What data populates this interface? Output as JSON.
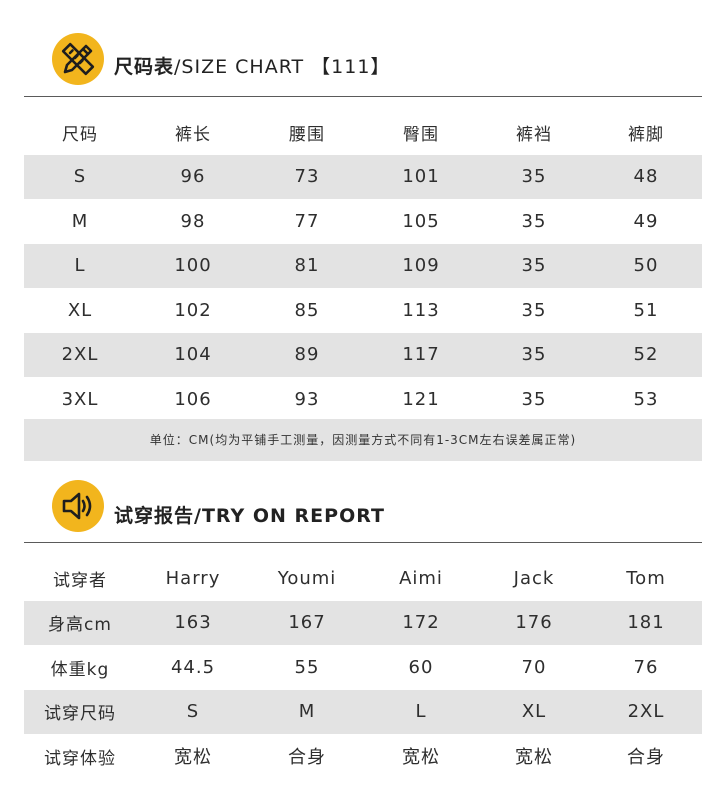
{
  "size_chart": {
    "title_cn": "尺码表",
    "title_en": "/SIZE CHART 【111】",
    "headers": [
      "尺码",
      "裤长",
      "腰围",
      "臀围",
      "裤裆",
      "裤脚"
    ],
    "rows": [
      [
        "S",
        "96",
        "73",
        "101",
        "35",
        "48"
      ],
      [
        "M",
        "98",
        "77",
        "105",
        "35",
        "49"
      ],
      [
        "L",
        "100",
        "81",
        "109",
        "35",
        "50"
      ],
      [
        "XL",
        "102",
        "85",
        "113",
        "35",
        "51"
      ],
      [
        "2XL",
        "104",
        "89",
        "117",
        "35",
        "52"
      ],
      [
        "3XL",
        "106",
        "93",
        "121",
        "35",
        "53"
      ]
    ],
    "note": "单位：CM(均为平铺手工测量，因测量方式不同有1-3CM左右误差属正常)"
  },
  "try_on_report": {
    "title_cn": "试穿报告",
    "title_en": "/TRY ON REPORT",
    "rows": [
      [
        "试穿者",
        "Harry",
        "Youmi",
        "Aimi",
        "Jack",
        "Tom"
      ],
      [
        "身高cm",
        "163",
        "167",
        "172",
        "176",
        "181"
      ],
      [
        "体重kg",
        "44.5",
        "55",
        "60",
        "70",
        "76"
      ],
      [
        "试穿尺码",
        "S",
        "M",
        "L",
        "XL",
        "2XL"
      ],
      [
        "试穿体验",
        "宽松",
        "合身",
        "宽松",
        "宽松",
        "合身"
      ]
    ]
  },
  "icons": {
    "size_icon": "ruler-pencil-icon",
    "report_icon": "speaker-icon"
  },
  "colors": {
    "badge": "#f2b51d",
    "row_shade": "#e3e3e3",
    "rule": "#5a5a5a"
  }
}
